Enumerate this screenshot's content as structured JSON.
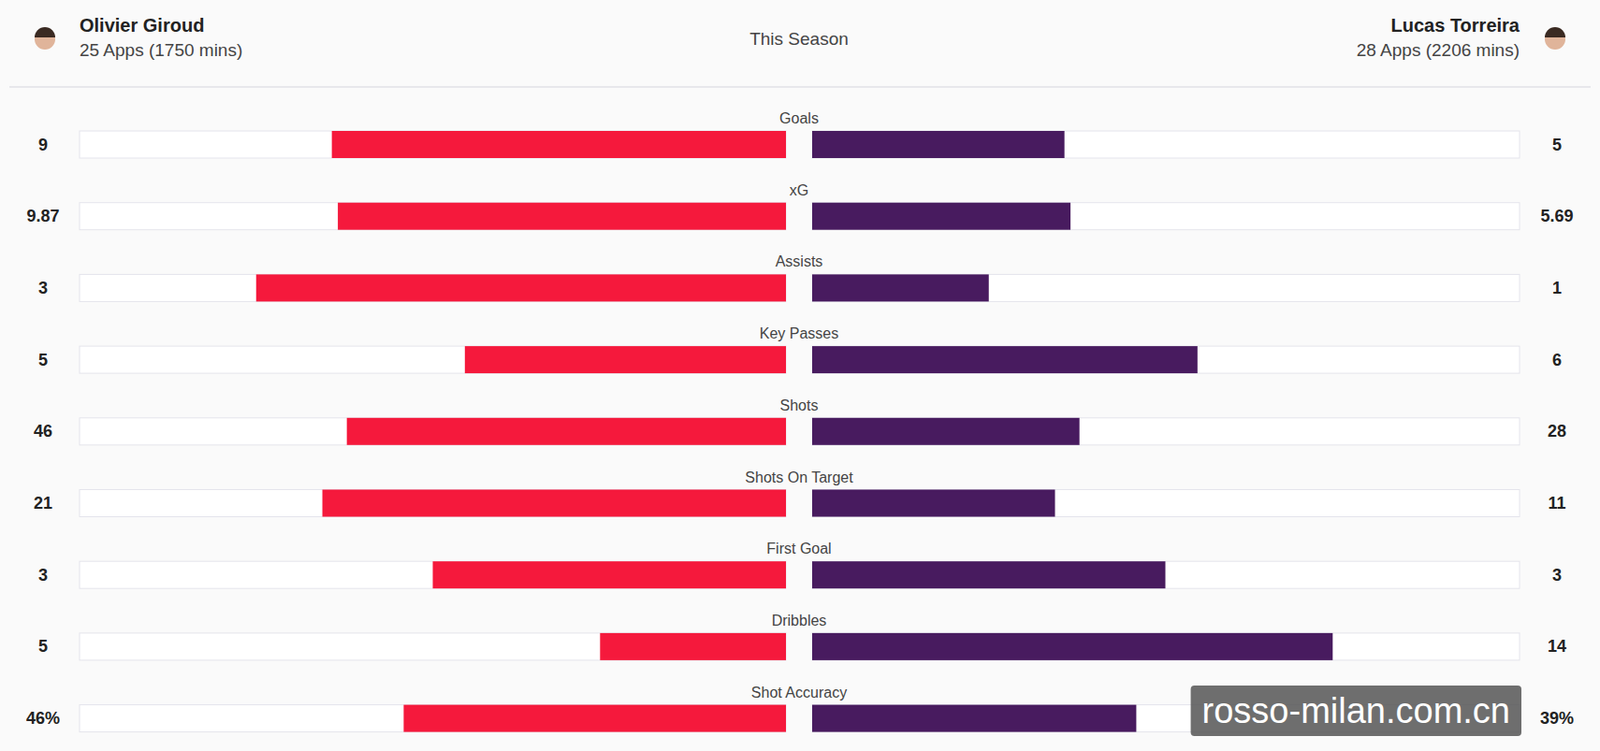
{
  "chart_data": {
    "type": "bar",
    "orientation": "horizontal",
    "title": "This Season",
    "categories": [
      "Goals",
      "xG",
      "Assists",
      "Key Passes",
      "Shots",
      "Shots On Target",
      "First Goal",
      "Dribbles",
      "Shot Accuracy"
    ],
    "series": [
      {
        "name": "Olivier Giroud",
        "subtitle": "25 Apps (1750 mins)",
        "color": "#f5193c",
        "values": [
          9,
          9.87,
          3,
          5,
          46,
          21,
          3,
          5,
          46
        ],
        "value_labels": [
          "9",
          "9.87",
          "3",
          "5",
          "46",
          "21",
          "3",
          "5",
          "46%"
        ]
      },
      {
        "name": "Lucas Torreira",
        "subtitle": "28 Apps (2206 mins)",
        "color": "#481b5f",
        "values": [
          5,
          5.69,
          1,
          6,
          28,
          11,
          3,
          14,
          39
        ],
        "value_labels": [
          "5",
          "5.69",
          "1",
          "6",
          "28",
          "11",
          "3",
          "14",
          "39%"
        ]
      }
    ],
    "data_labels": true,
    "tick_labels": false,
    "annotations": [
      "rosso-milan.com.cn"
    ]
  }
}
